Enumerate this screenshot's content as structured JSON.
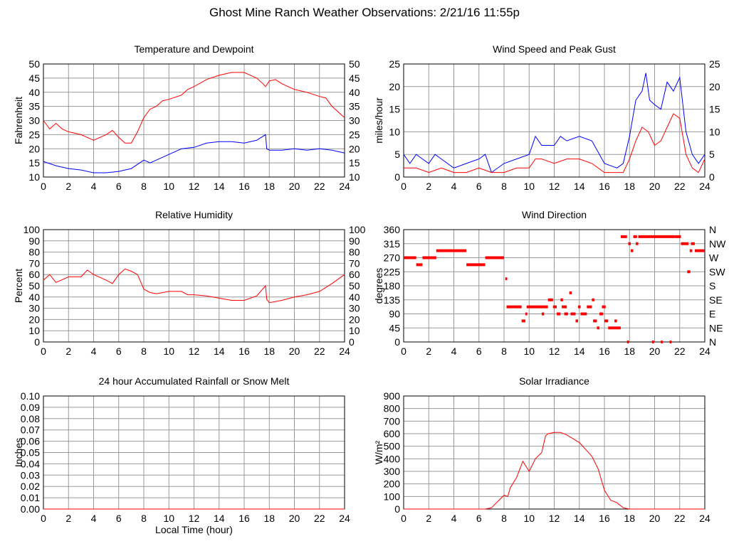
{
  "page_title": "Ghost Mine Ranch Weather Observations: 2/21/16 11:55p",
  "colors": {
    "red": "#ff0000",
    "blue": "#0000ff",
    "grid": "#999999"
  },
  "chart_data": [
    {
      "type": "line",
      "title": "Temperature and Dewpoint",
      "ylabel": "Fahrenheit",
      "xlabel": "",
      "xlim": [
        0,
        24
      ],
      "xticks": [
        0,
        2,
        4,
        6,
        8,
        10,
        12,
        14,
        16,
        18,
        20,
        22,
        24
      ],
      "ylim": [
        10,
        50
      ],
      "yticks": [
        "10",
        "15",
        "20",
        "25",
        "30",
        "35",
        "40",
        "45",
        "50"
      ],
      "right_ticks": [
        "10",
        "15",
        "20",
        "25",
        "30",
        "35",
        "40",
        "45",
        "50"
      ],
      "series": [
        {
          "name": "Temperature",
          "color": "#ff0000",
          "x": [
            0,
            0.5,
            1,
            1.5,
            2,
            3,
            3.5,
            4,
            4.5,
            5,
            5.5,
            6,
            6.5,
            7,
            7.5,
            8,
            8.5,
            9,
            9.5,
            10,
            11,
            11.5,
            12,
            13,
            14,
            15,
            16,
            16.5,
            17,
            17.5,
            17.7,
            18,
            18.5,
            19,
            20,
            21,
            22,
            22.5,
            23,
            24
          ],
          "y": [
            30,
            27,
            29,
            27,
            26,
            25,
            24,
            23,
            24,
            25,
            26.5,
            24,
            22,
            22,
            26,
            31,
            34,
            35,
            37,
            37.5,
            39,
            41,
            42,
            44.5,
            46,
            47,
            47,
            46,
            45,
            43,
            42,
            44,
            44.5,
            43,
            41,
            40,
            38.5,
            38,
            35,
            31
          ]
        },
        {
          "name": "Dewpoint",
          "color": "#0000ff",
          "x": [
            0,
            1,
            2,
            3,
            4,
            5,
            6,
            7,
            8,
            8.5,
            9,
            10,
            11,
            12,
            13,
            14,
            15,
            16,
            17,
            17.7,
            17.8,
            18,
            19,
            20,
            21,
            22,
            23,
            24
          ],
          "y": [
            15.5,
            14,
            13,
            12.5,
            11.5,
            11.5,
            12,
            13,
            16,
            15,
            16,
            18,
            20,
            20.5,
            22,
            22.5,
            22.5,
            22,
            23,
            25,
            20,
            19.5,
            19.5,
            20,
            19.5,
            20,
            19.5,
            18.5
          ]
        }
      ]
    },
    {
      "type": "line",
      "title": "Wind Speed and Peak Gust",
      "ylabel": "miles/hour",
      "xlabel": "",
      "xlim": [
        0,
        24
      ],
      "xticks": [
        0,
        2,
        4,
        6,
        8,
        10,
        12,
        14,
        16,
        18,
        20,
        22,
        24
      ],
      "ylim": [
        0,
        25
      ],
      "yticks": [
        "0",
        "5",
        "10",
        "15",
        "20",
        "25"
      ],
      "right_ticks": [
        "0",
        "5",
        "10",
        "15",
        "20",
        "25"
      ],
      "series": [
        {
          "name": "Peak Gust",
          "color": "#0000ff",
          "x": [
            0,
            0.5,
            1,
            1.5,
            2,
            2.5,
            3,
            4,
            5,
            6,
            6.5,
            7,
            8,
            9,
            10,
            10.5,
            11,
            12,
            12.5,
            13,
            14,
            15,
            16,
            17,
            17.5,
            18,
            18.5,
            19,
            19.3,
            19.6,
            20,
            20.5,
            21,
            21.5,
            22,
            22.5,
            23,
            23.5,
            24
          ],
          "y": [
            5,
            3,
            5,
            4,
            3,
            5,
            4,
            2,
            3,
            4,
            5,
            1,
            3,
            4,
            5,
            9,
            7,
            7,
            9,
            8,
            9,
            8,
            3,
            2,
            3,
            9,
            17,
            19,
            23,
            17,
            16,
            15,
            21,
            19,
            22,
            10,
            5,
            3,
            5
          ]
        },
        {
          "name": "Wind Speed",
          "color": "#ff0000",
          "x": [
            0,
            1,
            2,
            3,
            4,
            5,
            6,
            7,
            8,
            9,
            10,
            10.5,
            11,
            12,
            13,
            14,
            15,
            16,
            17,
            17.5,
            18,
            18.5,
            19,
            19.5,
            20,
            20.5,
            21,
            21.5,
            22,
            22.5,
            23,
            23.5,
            24
          ],
          "y": [
            2,
            2,
            1,
            2,
            1,
            1,
            2,
            1,
            1,
            2,
            2,
            4,
            4,
            3,
            4,
            4,
            3,
            1,
            1,
            1,
            4,
            8,
            11,
            10,
            7,
            8,
            11,
            14,
            13,
            5,
            2,
            1,
            4
          ]
        }
      ]
    },
    {
      "type": "line",
      "title": "Relative Humidity",
      "ylabel": "Percent",
      "xlabel": "",
      "xlim": [
        0,
        24
      ],
      "xticks": [
        0,
        2,
        4,
        6,
        8,
        10,
        12,
        14,
        16,
        18,
        20,
        22,
        24
      ],
      "ylim": [
        0,
        100
      ],
      "yticks": [
        "0",
        "10",
        "20",
        "30",
        "40",
        "50",
        "60",
        "70",
        "80",
        "90",
        "100"
      ],
      "right_ticks": [
        "0",
        "10",
        "20",
        "30",
        "40",
        "50",
        "60",
        "70",
        "80",
        "90",
        "100"
      ],
      "series": [
        {
          "name": "Relative Humidity",
          "color": "#ff0000",
          "x": [
            0,
            0.5,
            1,
            2,
            3,
            3.5,
            4,
            5,
            5.5,
            6,
            6.5,
            7,
            7.5,
            8,
            8.5,
            9,
            10,
            11,
            11.5,
            12,
            13,
            14,
            15,
            16,
            17,
            17.7,
            17.8,
            18,
            19,
            20,
            21,
            22,
            23,
            24
          ],
          "y": [
            55,
            60,
            53,
            58,
            58,
            64,
            60,
            55,
            52,
            60,
            65,
            63,
            60,
            47,
            44,
            43,
            45,
            45,
            42,
            42,
            41,
            39,
            37,
            37,
            41,
            50,
            38,
            35,
            37,
            40,
            42,
            45,
            52,
            60
          ]
        }
      ]
    },
    {
      "type": "scatter",
      "title": "Wind Direction",
      "ylabel": "degrees",
      "xlabel": "",
      "xlim": [
        0,
        24
      ],
      "xticks": [
        0,
        2,
        4,
        6,
        8,
        10,
        12,
        14,
        16,
        18,
        20,
        22,
        24
      ],
      "ylim": [
        0,
        360
      ],
      "yticks": [
        "0",
        "45",
        "90",
        "135",
        "180",
        "225",
        "270",
        "315",
        "360"
      ],
      "right_ticks": [
        "N",
        "NE",
        "E",
        "SE",
        "S",
        "SW",
        "W",
        "NW",
        "N"
      ],
      "series": [
        {
          "name": "Wind Direction",
          "color": "#ff0000",
          "segments": [
            [
              0,
              1,
              270
            ],
            [
              1,
              1.5,
              247.5
            ],
            [
              1.5,
              2.6,
              270
            ],
            [
              2.6,
              5,
              292.5
            ],
            [
              5,
              6.5,
              247.5
            ],
            [
              6.5,
              8,
              270
            ],
            [
              8.1,
              8.25,
              202.5
            ],
            [
              8.2,
              9.4,
              112.5
            ],
            [
              9.4,
              9.7,
              67.5
            ],
            [
              9.7,
              9.85,
              90
            ],
            [
              9.8,
              11.5,
              112.5
            ],
            [
              11,
              11.2,
              90
            ],
            [
              11.5,
              11.9,
              135
            ],
            [
              11.9,
              12.2,
              112.5
            ],
            [
              12.2,
              12.5,
              90
            ],
            [
              12.5,
              12.7,
              135
            ],
            [
              12.6,
              13,
              112.5
            ],
            [
              12.8,
              13.1,
              90
            ],
            [
              13.2,
              13.4,
              157.5
            ],
            [
              13.3,
              13.7,
              90
            ],
            [
              13.7,
              13.9,
              67.5
            ],
            [
              13.9,
              14.1,
              112.5
            ],
            [
              14.1,
              14.6,
              90
            ],
            [
              14.6,
              15,
              112.5
            ],
            [
              15,
              15.2,
              135
            ],
            [
              15.1,
              15.4,
              67.5
            ],
            [
              15.4,
              15.6,
              45
            ],
            [
              15.6,
              15.9,
              90
            ],
            [
              15.8,
              16.1,
              112.5
            ],
            [
              16,
              16.3,
              67.5
            ],
            [
              16.3,
              17.3,
              45
            ],
            [
              16.8,
              17,
              67.5
            ],
            [
              17.3,
              17.8,
              337.5
            ],
            [
              17.8,
              17.95,
              0
            ],
            [
              17.9,
              18.1,
              315
            ],
            [
              18.1,
              18.3,
              292.5
            ],
            [
              18.3,
              18.6,
              337.5
            ],
            [
              18.5,
              18.7,
              315
            ],
            [
              18.7,
              21.6,
              337.5
            ],
            [
              19.8,
              19.95,
              0
            ],
            [
              20.5,
              20.65,
              0
            ],
            [
              21.2,
              21.35,
              0
            ],
            [
              21.6,
              22.1,
              337.5
            ],
            [
              22.1,
              22.7,
              315
            ],
            [
              22.6,
              22.85,
              225
            ],
            [
              22.8,
              23,
              292.5
            ],
            [
              22.9,
              23.2,
              315
            ],
            [
              23.2,
              24,
              292.5
            ]
          ]
        }
      ]
    },
    {
      "type": "line",
      "title": "24 hour Accumulated Rainfall or Snow Melt",
      "ylabel": "Inches",
      "xlabel": "Local Time (hour)",
      "xlim": [
        0,
        24
      ],
      "xticks": [
        0,
        2,
        4,
        6,
        8,
        10,
        12,
        14,
        16,
        18,
        20,
        22,
        24
      ],
      "ylim": [
        0,
        0.1
      ],
      "yticks": [
        "0.00",
        "0.01",
        "0.02",
        "0.03",
        "0.04",
        "0.05",
        "0.06",
        "0.07",
        "0.08",
        "0.09",
        "0.10"
      ],
      "right_ticks": [],
      "series": [
        {
          "name": "Rainfall",
          "color": "#ff0000",
          "x": [
            0,
            24
          ],
          "y": [
            0,
            0
          ]
        }
      ]
    },
    {
      "type": "line",
      "title": "Solar Irradiance",
      "ylabel": "W/m²",
      "xlabel": "",
      "xlim": [
        0,
        24
      ],
      "xticks": [
        0,
        2,
        4,
        6,
        8,
        10,
        12,
        14,
        16,
        18,
        20,
        22,
        24
      ],
      "ylim": [
        0,
        900
      ],
      "yticks": [
        "0",
        "100",
        "200",
        "300",
        "400",
        "500",
        "600",
        "700",
        "800",
        "900"
      ],
      "right_ticks": [],
      "series": [
        {
          "name": "Solar Irradiance",
          "color": "#ff0000",
          "x": [
            0,
            6.5,
            7,
            7.5,
            8,
            8.3,
            8.5,
            9,
            9.5,
            10,
            10.5,
            11,
            11.3,
            11.5,
            12,
            12.5,
            13,
            14,
            15,
            15.5,
            16,
            16.5,
            17,
            17.5,
            18,
            24
          ],
          "y": [
            0,
            0,
            10,
            60,
            110,
            100,
            170,
            250,
            380,
            300,
            400,
            450,
            580,
            600,
            610,
            610,
            590,
            530,
            420,
            320,
            150,
            70,
            50,
            10,
            0,
            0
          ]
        }
      ]
    }
  ]
}
